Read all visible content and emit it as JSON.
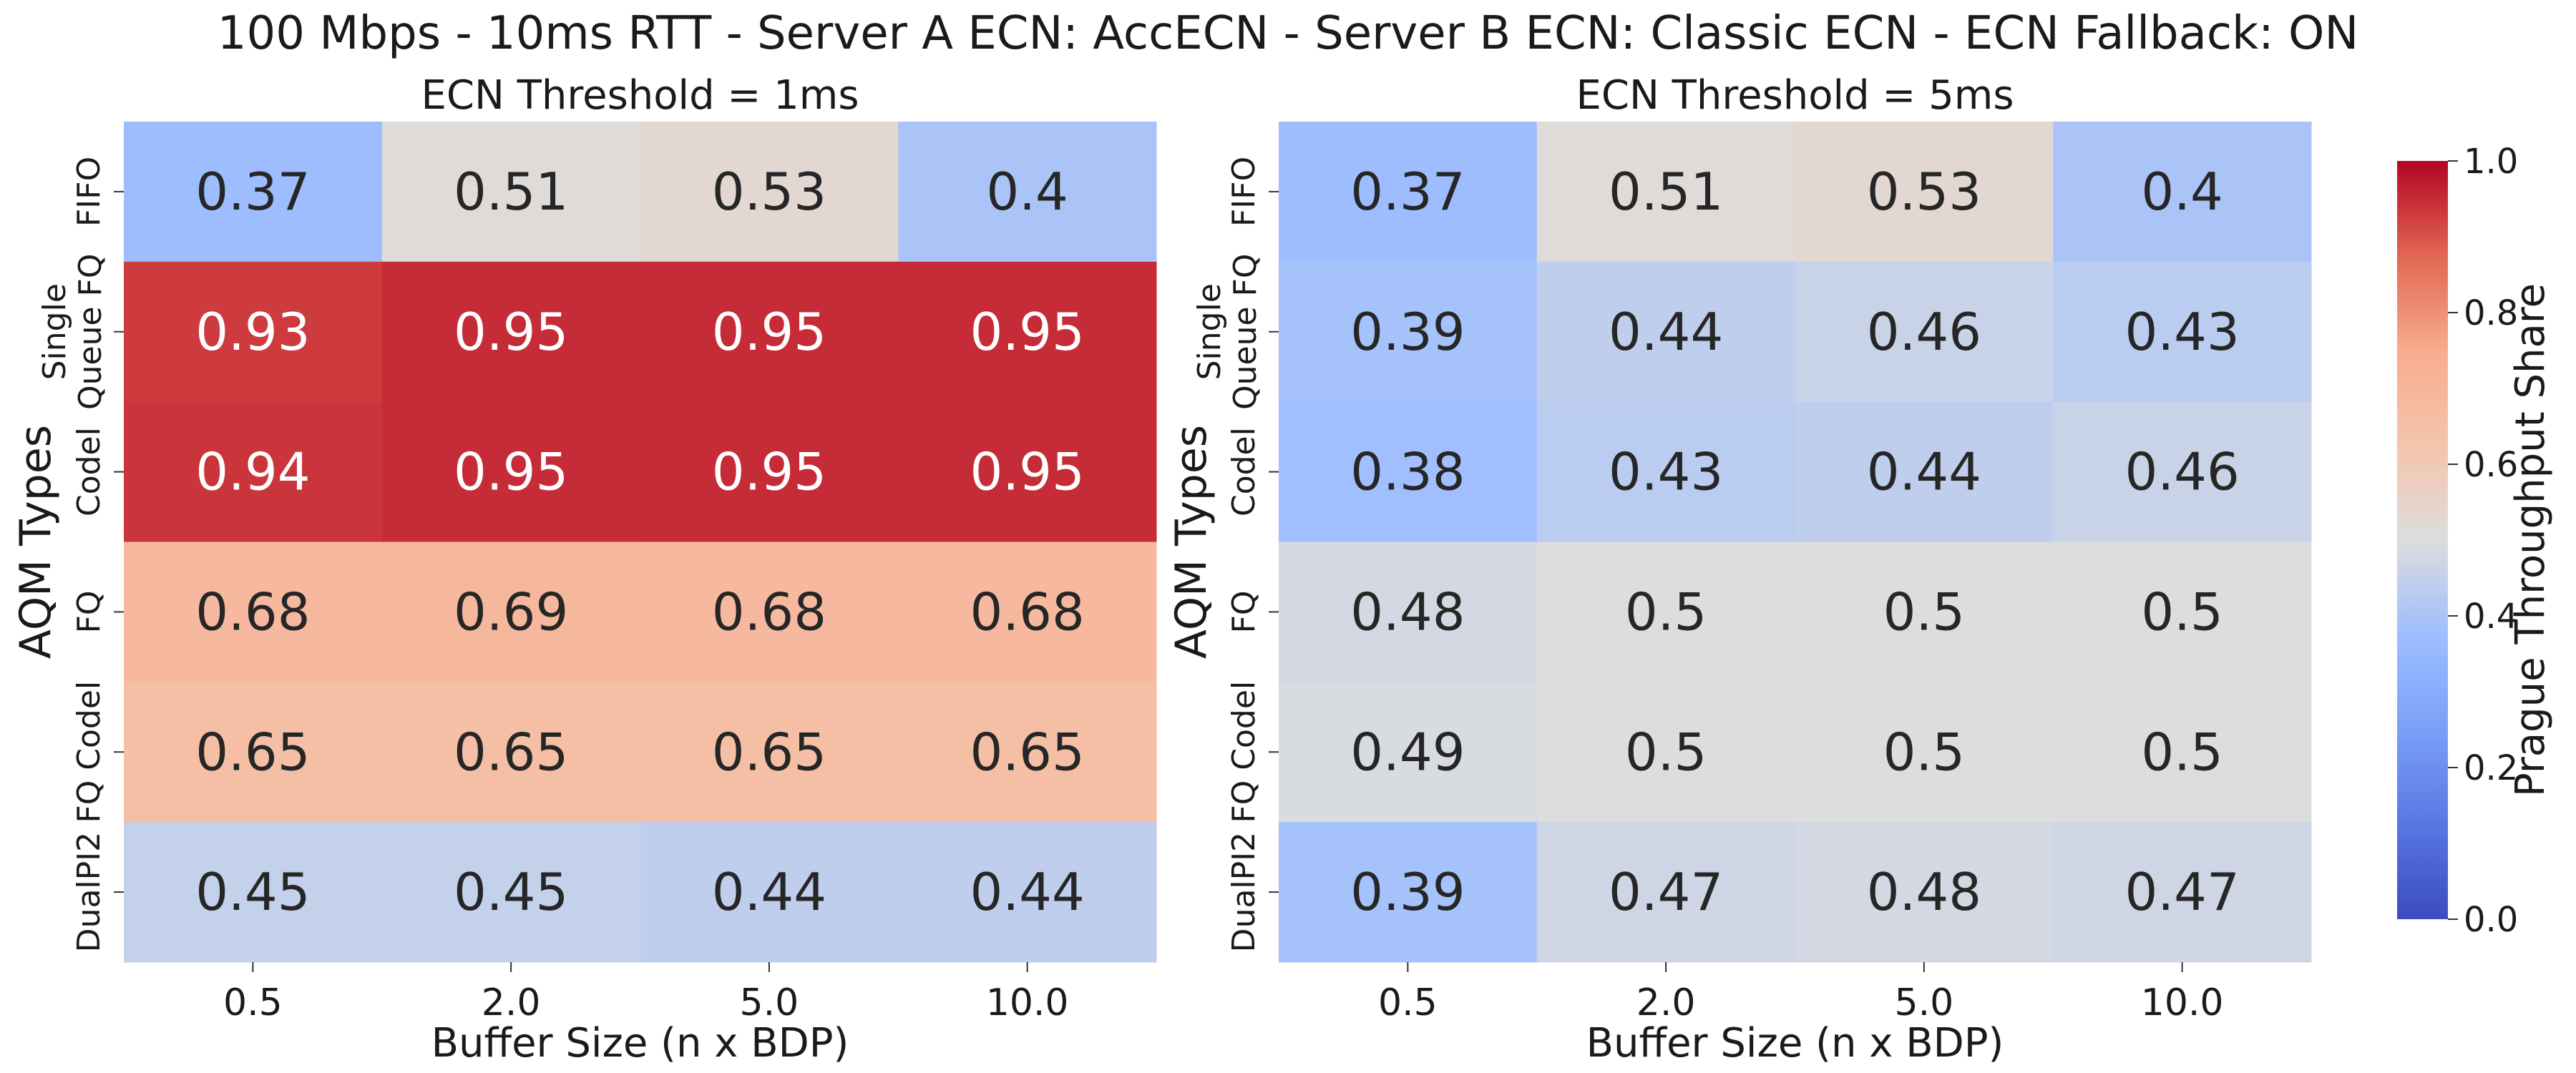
{
  "suptitle": "100 Mbps - 10ms RTT - Server A ECN: AccECN - Server B ECN: Classic ECN - ECN Fallback: ON",
  "chart_data": [
    {
      "type": "heatmap",
      "title": "ECN Threshold = 1ms",
      "xlabel": "Buffer Size (n x BDP)",
      "ylabel": "AQM Types",
      "categories": [
        "0.5",
        "2.0",
        "5.0",
        "10.0"
      ],
      "rows": [
        {
          "label": "FIFO",
          "values": [
            0.37,
            0.51,
            0.53,
            0.4
          ]
        },
        {
          "label": "Single Queue FQ",
          "values": [
            0.93,
            0.95,
            0.95,
            0.95
          ]
        },
        {
          "label": "Codel",
          "values": [
            0.94,
            0.95,
            0.95,
            0.95
          ]
        },
        {
          "label": "FQ",
          "values": [
            0.68,
            0.69,
            0.68,
            0.68
          ]
        },
        {
          "label": "FQ Codel",
          "values": [
            0.65,
            0.65,
            0.65,
            0.65
          ]
        },
        {
          "label": "DualPI2",
          "values": [
            0.45,
            0.45,
            0.44,
            0.44
          ]
        }
      ],
      "value_labels": [
        [
          "0.37",
          "0.51",
          "0.53",
          "0.4"
        ],
        [
          "0.93",
          "0.95",
          "0.95",
          "0.95"
        ],
        [
          "0.94",
          "0.95",
          "0.95",
          "0.95"
        ],
        [
          "0.68",
          "0.69",
          "0.68",
          "0.68"
        ],
        [
          "0.65",
          "0.65",
          "0.65",
          "0.65"
        ],
        [
          "0.45",
          "0.45",
          "0.44",
          "0.44"
        ]
      ]
    },
    {
      "type": "heatmap",
      "title": "ECN Threshold = 5ms",
      "xlabel": "Buffer Size (n x BDP)",
      "ylabel": "AQM Types",
      "categories": [
        "0.5",
        "2.0",
        "5.0",
        "10.0"
      ],
      "rows": [
        {
          "label": "FIFO",
          "values": [
            0.37,
            0.51,
            0.53,
            0.4
          ]
        },
        {
          "label": "Single Queue FQ",
          "values": [
            0.39,
            0.44,
            0.46,
            0.43
          ]
        },
        {
          "label": "Codel",
          "values": [
            0.38,
            0.43,
            0.44,
            0.46
          ]
        },
        {
          "label": "FQ",
          "values": [
            0.48,
            0.5,
            0.5,
            0.5
          ]
        },
        {
          "label": "FQ Codel",
          "values": [
            0.49,
            0.5,
            0.5,
            0.5
          ]
        },
        {
          "label": "DualPI2",
          "values": [
            0.39,
            0.47,
            0.48,
            0.47
          ]
        }
      ],
      "value_labels": [
        [
          "0.37",
          "0.51",
          "0.53",
          "0.4"
        ],
        [
          "0.39",
          "0.44",
          "0.46",
          "0.43"
        ],
        [
          "0.38",
          "0.43",
          "0.44",
          "0.46"
        ],
        [
          "0.48",
          "0.5",
          "0.5",
          "0.5"
        ],
        [
          "0.49",
          "0.5",
          "0.5",
          "0.5"
        ],
        [
          "0.39",
          "0.47",
          "0.48",
          "0.47"
        ]
      ]
    }
  ],
  "colorbar": {
    "label": "Prague Throughput Share",
    "colormap": "coolwarm",
    "range": [
      0.0,
      1.0
    ],
    "ticks": [
      "0.0",
      "0.2",
      "0.4",
      "0.6",
      "0.8",
      "1.0"
    ]
  }
}
